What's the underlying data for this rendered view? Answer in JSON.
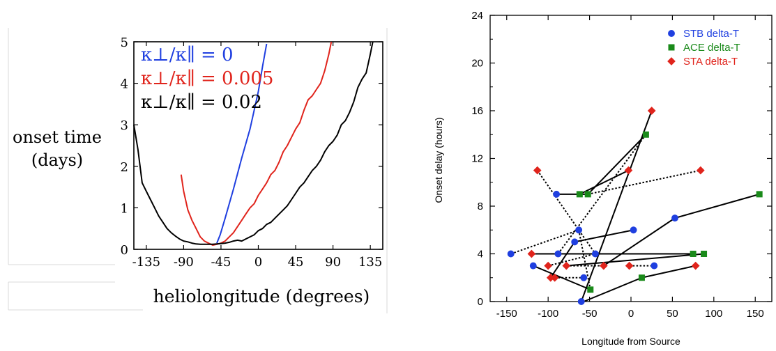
{
  "colors": {
    "blue": "#1f3fe0",
    "red": "#e0241c",
    "black": "#000000",
    "green": "#1a8a1a"
  },
  "chart_data": [
    {
      "type": "line",
      "title": "",
      "ylabel_line1": "onset time",
      "ylabel_line2": "(days)",
      "xlabel": "heliolongitude (degrees)",
      "xlim": [
        -150,
        150
      ],
      "ylim": [
        0,
        5
      ],
      "xticks": [
        -135,
        -90,
        -45,
        0,
        45,
        90,
        135
      ],
      "yticks": [
        0,
        1,
        2,
        3,
        4,
        5
      ],
      "legend": {
        "placement": "top-left",
        "entries": [
          {
            "base": "κ⊥/κ∥",
            "value": "= 0",
            "color": "blue"
          },
          {
            "base": "κ⊥/κ∥",
            "value": "= 0.005",
            "color": "red"
          },
          {
            "base": "κ⊥/κ∥",
            "value": "= 0.02",
            "color": "black"
          }
        ]
      },
      "series": [
        {
          "name": "κ⊥/κ∥ = 0",
          "color": "blue",
          "x": [
            -50,
            -46,
            -40,
            -30,
            -20,
            -10,
            0,
            5,
            10
          ],
          "y": [
            0.15,
            0.35,
            0.75,
            1.45,
            2.2,
            2.9,
            3.8,
            4.4,
            4.95
          ]
        },
        {
          "name": "κ⊥/κ∥ = 0.005",
          "color": "red",
          "x": [
            -93,
            -90,
            -85,
            -80,
            -75,
            -70,
            -65,
            -60,
            -55,
            -50,
            -45,
            -40,
            -35,
            -30,
            -25,
            -20,
            -15,
            -10,
            -5,
            0,
            5,
            10,
            15,
            20,
            25,
            30,
            35,
            40,
            45,
            50,
            55,
            60,
            65,
            70,
            75,
            80,
            85,
            88
          ],
          "y": [
            1.8,
            1.4,
            0.95,
            0.7,
            0.5,
            0.3,
            0.2,
            0.15,
            0.1,
            0.12,
            0.15,
            0.2,
            0.3,
            0.4,
            0.55,
            0.7,
            0.85,
            1.0,
            1.1,
            1.3,
            1.45,
            1.6,
            1.8,
            1.9,
            2.1,
            2.35,
            2.5,
            2.7,
            2.9,
            3.05,
            3.35,
            3.6,
            3.7,
            3.85,
            4.0,
            4.3,
            4.7,
            5.0
          ]
        },
        {
          "name": "κ⊥/κ∥ = 0.02",
          "color": "black",
          "x": [
            -150,
            -145,
            -140,
            -135,
            -130,
            -125,
            -120,
            -115,
            -110,
            -105,
            -100,
            -95,
            -90,
            -85,
            -80,
            -75,
            -70,
            -65,
            -60,
            -55,
            -50,
            -45,
            -40,
            -35,
            -30,
            -25,
            -20,
            -15,
            -10,
            -5,
            0,
            5,
            10,
            15,
            20,
            25,
            30,
            35,
            40,
            45,
            50,
            55,
            60,
            65,
            70,
            75,
            80,
            85,
            90,
            95,
            100,
            105,
            110,
            115,
            120,
            125,
            130,
            135,
            138
          ],
          "y": [
            3.0,
            2.4,
            1.6,
            1.4,
            1.2,
            1.0,
            0.8,
            0.65,
            0.5,
            0.4,
            0.32,
            0.25,
            0.2,
            0.18,
            0.15,
            0.13,
            0.12,
            0.12,
            0.12,
            0.12,
            0.13,
            0.14,
            0.15,
            0.17,
            0.2,
            0.22,
            0.2,
            0.25,
            0.3,
            0.35,
            0.45,
            0.5,
            0.6,
            0.65,
            0.75,
            0.85,
            0.95,
            1.05,
            1.2,
            1.35,
            1.5,
            1.6,
            1.75,
            1.9,
            2.0,
            2.15,
            2.35,
            2.5,
            2.6,
            2.75,
            3.0,
            3.1,
            3.3,
            3.55,
            3.9,
            4.1,
            4.25,
            4.7,
            5.0
          ]
        }
      ]
    },
    {
      "type": "scatter",
      "title": "",
      "xlabel": "Longitude from Source",
      "ylabel": "Onset delay (hours)",
      "xlim": [
        -170,
        170
      ],
      "ylim": [
        0,
        24
      ],
      "xticks": [
        -150,
        -100,
        -50,
        0,
        50,
        100,
        150
      ],
      "yticks": [
        0,
        4,
        8,
        12,
        16,
        20,
        24
      ],
      "legend": {
        "placement": "top-right"
      },
      "series": [
        {
          "name": "STB delta-T",
          "color": "blue",
          "marker": "circle",
          "x": [
            -145,
            -118,
            -90,
            -88,
            -68,
            -63,
            -60,
            -57,
            -43,
            3,
            28,
            53
          ],
          "y": [
            4,
            3,
            9,
            4,
            5,
            6,
            0,
            2,
            4,
            6,
            3,
            7
          ]
        },
        {
          "name": "ACE delta-T",
          "color": "green",
          "marker": "square",
          "x": [
            -62,
            -52,
            -49,
            13,
            18,
            75,
            88,
            155
          ],
          "y": [
            9,
            9,
            1,
            2,
            14,
            4,
            4,
            9
          ]
        },
        {
          "name": "STA delta-T",
          "color": "red",
          "marker": "diamond",
          "x": [
            -120,
            -113,
            -100,
            -97,
            -92,
            -78,
            -33,
            -3,
            -2,
            25,
            78,
            84
          ],
          "y": [
            4,
            11,
            3,
            2,
            2,
            3,
            3,
            11,
            3,
            16,
            3,
            11
          ]
        }
      ],
      "connectors": {
        "solid": [
          [
            [
              -90,
              9
            ],
            [
              -52,
              9
            ]
          ],
          [
            [
              -62,
              9
            ],
            [
              -3,
              11
            ]
          ],
          [
            [
              -57,
              0
            ],
            [
              13,
              2
            ]
          ],
          [
            [
              13,
              2
            ],
            [
              78,
              3
            ]
          ],
          [
            [
              -52,
              9
            ],
            [
              18,
              14
            ]
          ],
          [
            [
              -60,
              0
            ],
            [
              25,
              16
            ]
          ],
          [
            [
              -120,
              4
            ],
            [
              -88,
              4
            ]
          ],
          [
            [
              -88,
              4
            ],
            [
              75,
              4
            ]
          ],
          [
            [
              -78,
              3
            ],
            [
              88,
              4
            ]
          ],
          [
            [
              -118,
              3
            ],
            [
              -49,
              1
            ]
          ],
          [
            [
              -97,
              2
            ],
            [
              -68,
              5
            ]
          ],
          [
            [
              -68,
              5
            ],
            [
              3,
              6
            ]
          ],
          [
            [
              -33,
              3
            ],
            [
              53,
              7
            ]
          ],
          [
            [
              53,
              7
            ],
            [
              155,
              9
            ]
          ]
        ],
        "dotted": [
          [
            [
              -145,
              4
            ],
            [
              -63,
              6
            ]
          ],
          [
            [
              -113,
              11
            ],
            [
              -43,
              4
            ]
          ],
          [
            [
              -52,
              9
            ],
            [
              84,
              11
            ]
          ],
          [
            [
              -92,
              2
            ],
            [
              -57,
              2
            ]
          ],
          [
            [
              -78,
              3
            ],
            [
              -33,
              3
            ]
          ],
          [
            [
              -2,
              3
            ],
            [
              28,
              3
            ]
          ],
          [
            [
              -100,
              3
            ],
            [
              -43,
              4
            ]
          ],
          [
            [
              -43,
              4
            ],
            [
              75,
              4
            ]
          ],
          [
            [
              -88,
              4
            ],
            [
              18,
              14
            ]
          ],
          [
            [
              -63,
              6
            ],
            [
              -49,
              1
            ]
          ]
        ]
      }
    }
  ]
}
